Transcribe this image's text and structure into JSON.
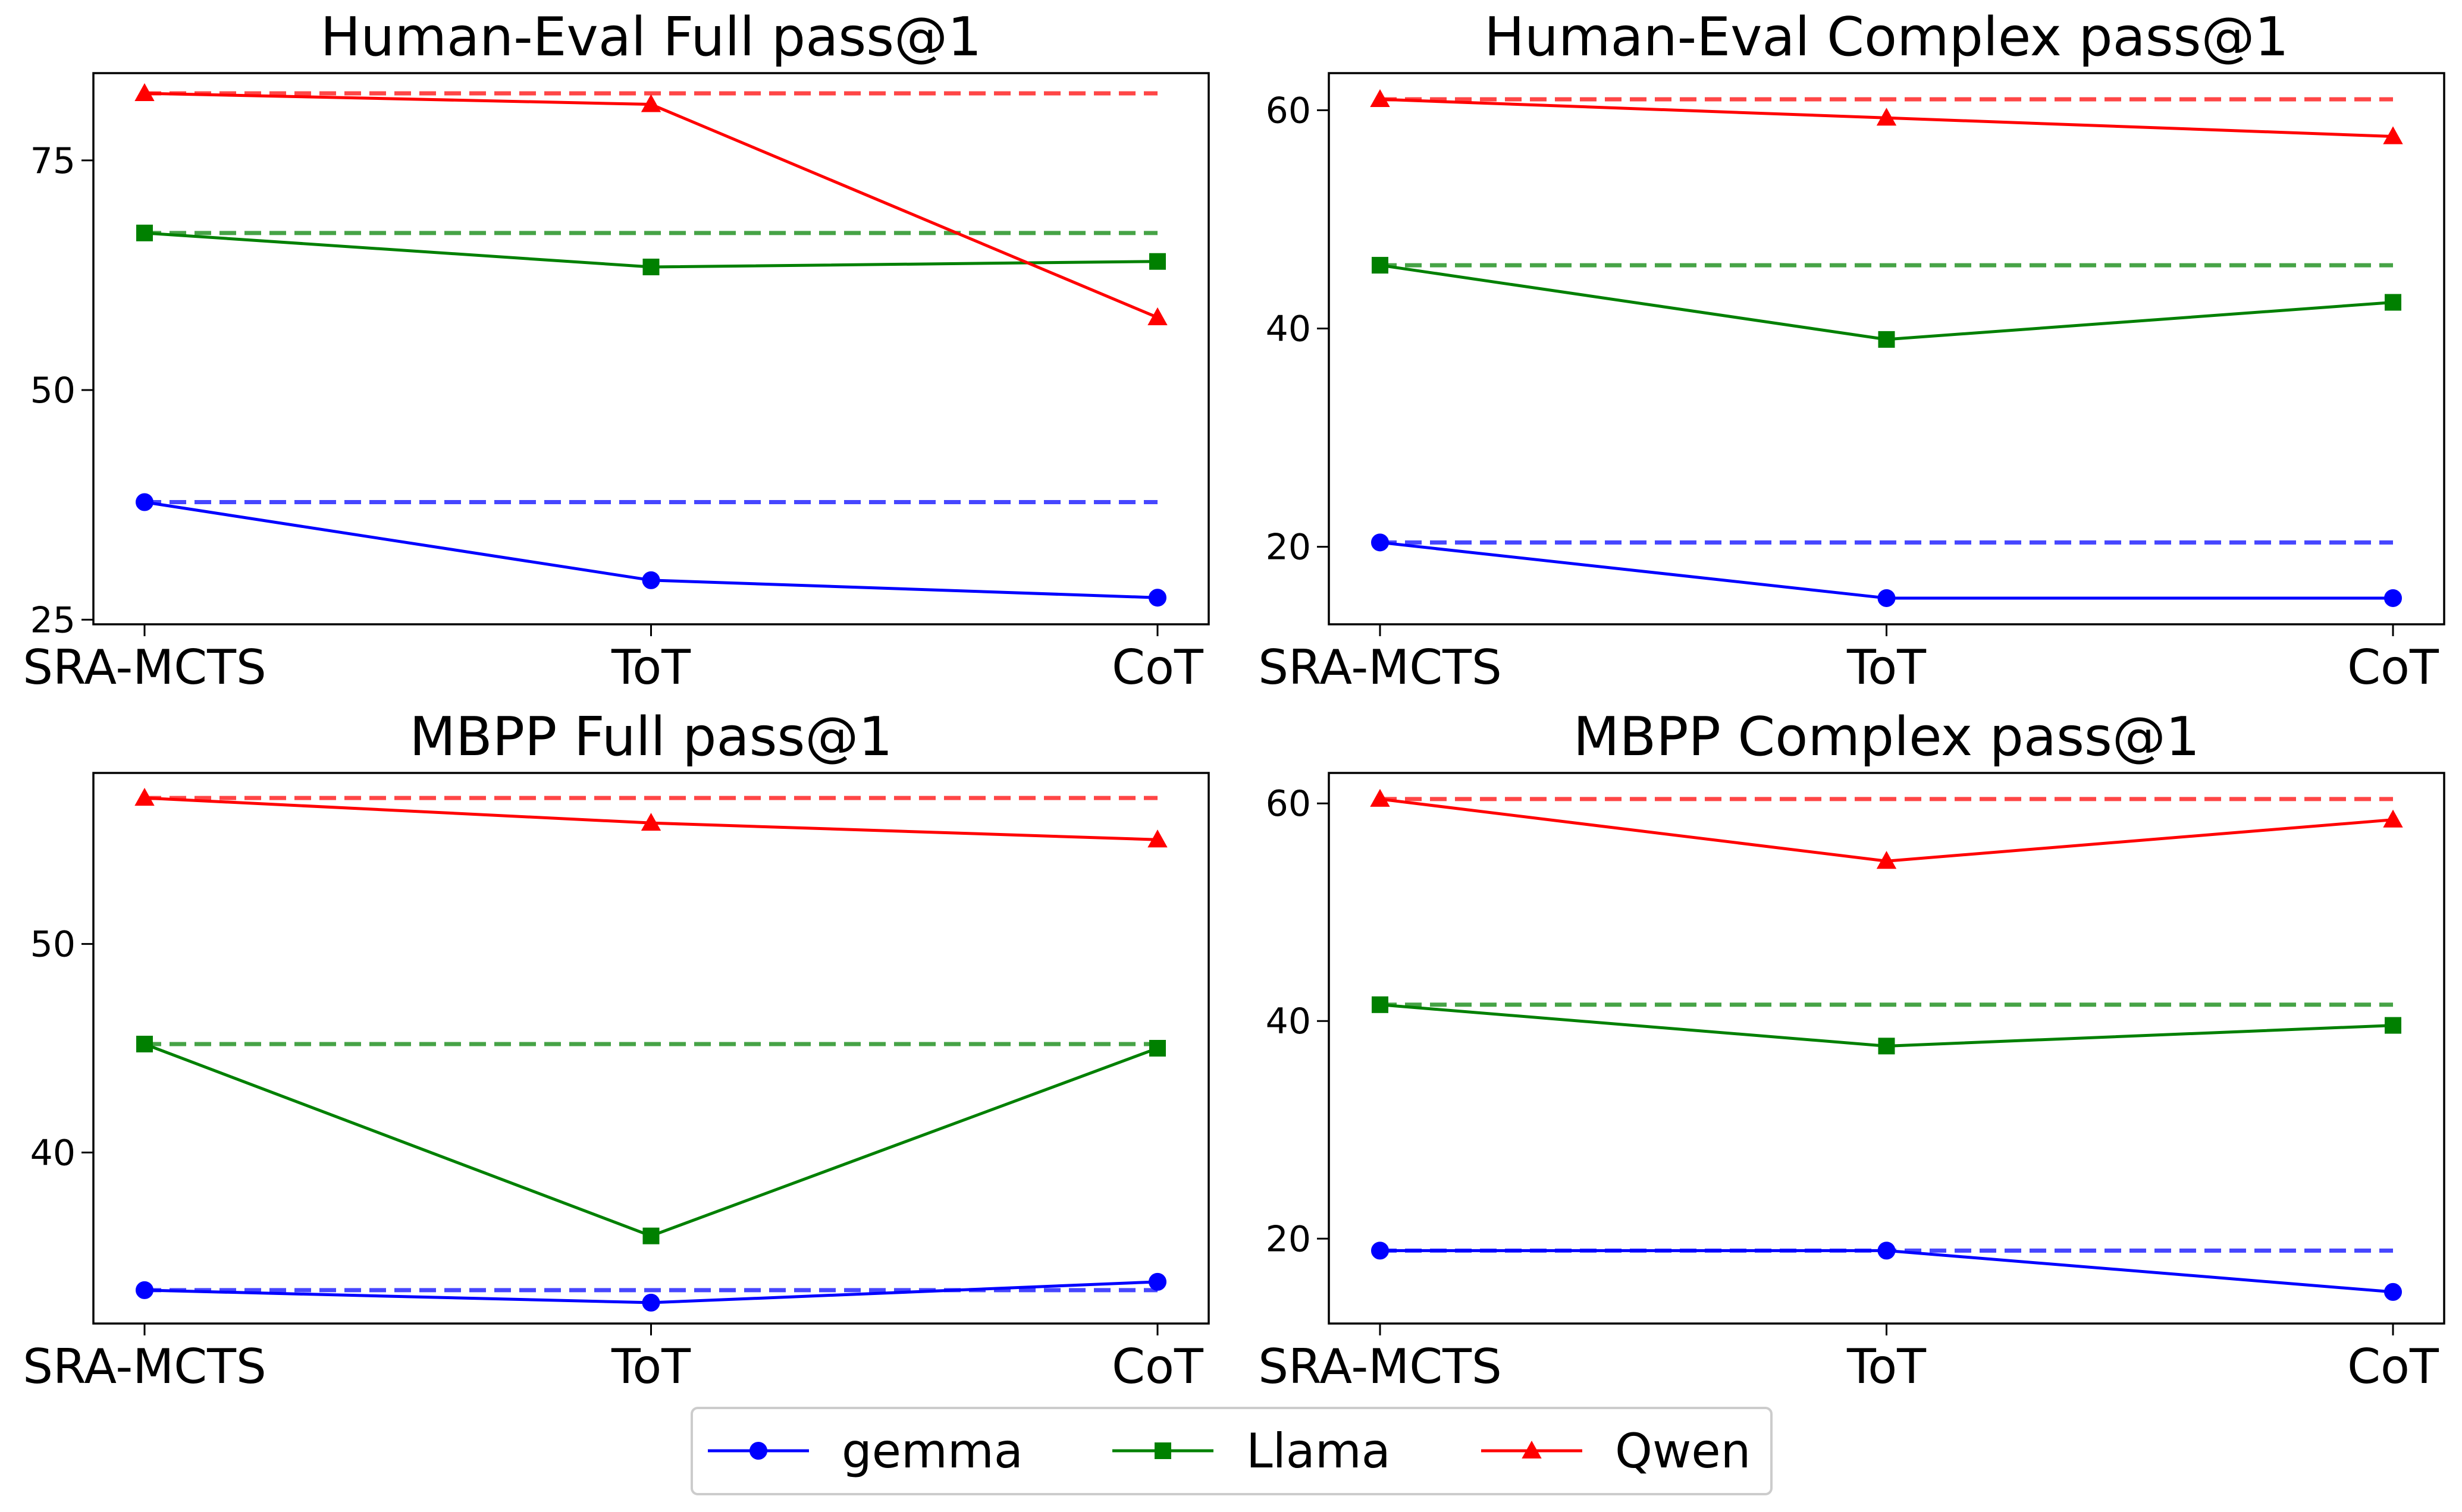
{
  "chart_data": [
    {
      "type": "line",
      "title": "Human-Eval Full pass@1",
      "categories": [
        "SRA-MCTS",
        "ToT",
        "CoT"
      ],
      "ylim": [
        24.5,
        84.5
      ],
      "yticks": [
        25,
        50,
        75
      ],
      "series": [
        {
          "name": "gemma",
          "values": [
            37.8,
            29.3,
            27.4
          ],
          "baseline": 37.8
        },
        {
          "name": "Llama",
          "values": [
            67.1,
            63.4,
            64.0
          ],
          "baseline": 67.1
        },
        {
          "name": "Qwen",
          "values": [
            82.3,
            81.1,
            57.9
          ],
          "baseline": 82.3
        }
      ]
    },
    {
      "type": "line",
      "title": "Human-Eval Complex pass@1",
      "categories": [
        "SRA-MCTS",
        "ToT",
        "CoT"
      ],
      "ylim": [
        12.9,
        63.4
      ],
      "yticks": [
        20,
        40,
        60
      ],
      "series": [
        {
          "name": "gemma",
          "values": [
            20.4,
            15.3,
            15.3
          ],
          "baseline": 20.4
        },
        {
          "name": "Llama",
          "values": [
            45.8,
            39.0,
            42.4
          ],
          "baseline": 45.8
        },
        {
          "name": "Qwen",
          "values": [
            61.0,
            59.3,
            57.6
          ],
          "baseline": 61.0
        }
      ]
    },
    {
      "type": "line",
      "title": "MBPP Full pass@1",
      "categories": [
        "SRA-MCTS",
        "ToT",
        "CoT"
      ],
      "ylim": [
        31.8,
        58.2
      ],
      "yticks": [
        40,
        50
      ],
      "series": [
        {
          "name": "gemma",
          "values": [
            33.4,
            32.8,
            33.8
          ],
          "baseline": 33.4
        },
        {
          "name": "Llama",
          "values": [
            45.2,
            36.0,
            45.0
          ],
          "baseline": 45.2
        },
        {
          "name": "Qwen",
          "values": [
            57.0,
            55.8,
            55.0
          ],
          "baseline": 57.0
        }
      ]
    },
    {
      "type": "line",
      "title": "MBPP Complex pass@1",
      "categories": [
        "SRA-MCTS",
        "ToT",
        "CoT"
      ],
      "ylim": [
        12.2,
        62.8
      ],
      "yticks": [
        20,
        40,
        60
      ],
      "series": [
        {
          "name": "gemma",
          "values": [
            18.9,
            18.9,
            15.1
          ],
          "baseline": 18.9
        },
        {
          "name": "Llama",
          "values": [
            41.5,
            37.7,
            39.6
          ],
          "baseline": 41.5
        },
        {
          "name": "Qwen",
          "values": [
            60.4,
            54.7,
            58.5
          ],
          "baseline": 60.4
        }
      ]
    }
  ],
  "legend": [
    {
      "name": "gemma",
      "color": "#0000ff",
      "marker": "circle"
    },
    {
      "name": "Llama",
      "color": "#008000",
      "marker": "square"
    },
    {
      "name": "Qwen",
      "color": "#ff0000",
      "marker": "triangle"
    }
  ]
}
